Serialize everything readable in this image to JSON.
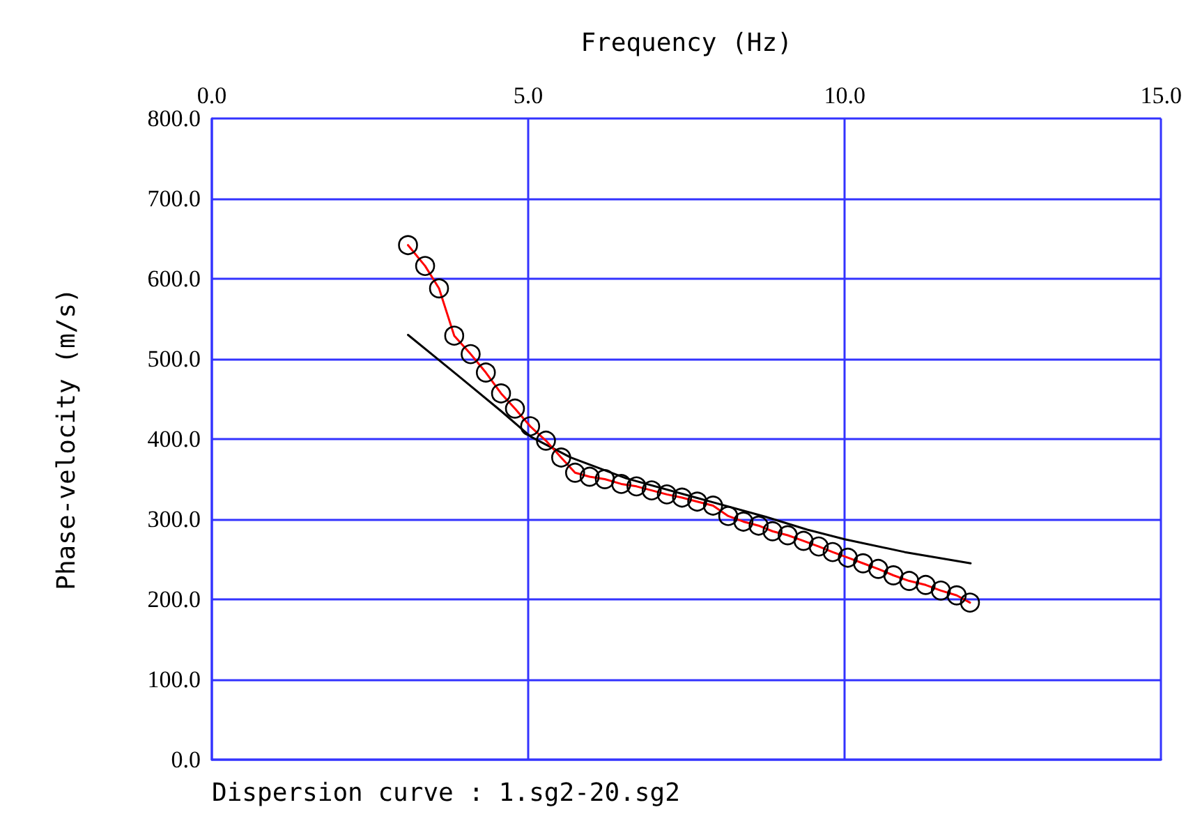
{
  "chart_data": {
    "type": "line",
    "xlabel": "Frequency (Hz)",
    "ylabel": "Phase-velocity (m/s)",
    "annotations": [
      "Dispersion curve : 1.sg2-20.sg2"
    ],
    "xlim": [
      0,
      15
    ],
    "ylim": [
      0,
      800
    ],
    "xticks": [
      {
        "value": 0,
        "label": "0.0"
      },
      {
        "value": 5,
        "label": "5.0"
      },
      {
        "value": 10,
        "label": "10.0"
      },
      {
        "value": 15,
        "label": "15.0"
      }
    ],
    "yticks": [
      {
        "value": 0,
        "label": "0.0"
      },
      {
        "value": 100,
        "label": "100.0"
      },
      {
        "value": 200,
        "label": "200.0"
      },
      {
        "value": 300,
        "label": "300.0"
      },
      {
        "value": 400,
        "label": "400.0"
      },
      {
        "value": 500,
        "label": "500.0"
      },
      {
        "value": 600,
        "label": "600.0"
      },
      {
        "value": 700,
        "label": "700.0"
      },
      {
        "value": 800,
        "label": "800.0"
      }
    ],
    "grid": true,
    "series": [
      {
        "color": "#ff0000",
        "marker": "circle",
        "x": [
          3.1,
          3.37,
          3.59,
          3.83,
          4.09,
          4.33,
          4.57,
          4.79,
          5.03,
          5.28,
          5.52,
          5.74,
          5.97,
          6.21,
          6.47,
          6.71,
          6.95,
          7.19,
          7.43,
          7.67,
          7.92,
          8.16,
          8.4,
          8.64,
          8.86,
          9.1,
          9.35,
          9.59,
          9.81,
          10.05,
          10.29,
          10.53,
          10.77,
          11.02,
          11.28,
          11.52,
          11.77,
          11.98
        ],
        "values": [
          642,
          616,
          588,
          529,
          506,
          483,
          457,
          438,
          416,
          398,
          377,
          358,
          353,
          350,
          344,
          341,
          336,
          331,
          327,
          322,
          317,
          304,
          297,
          292,
          285,
          280,
          273,
          266,
          259,
          252,
          245,
          238,
          230,
          223,
          218,
          211,
          205,
          196
        ]
      },
      {
        "color": "#000000",
        "marker": "none",
        "x": [
          3.1,
          3.91,
          4.57,
          5.04,
          5.67,
          6.55,
          7.65,
          8.75,
          9.41,
          10.0,
          10.95,
          11.99
        ],
        "values": [
          530,
          478,
          435,
          403,
          377,
          351,
          327,
          303,
          287,
          275,
          259,
          245
        ]
      }
    ]
  }
}
